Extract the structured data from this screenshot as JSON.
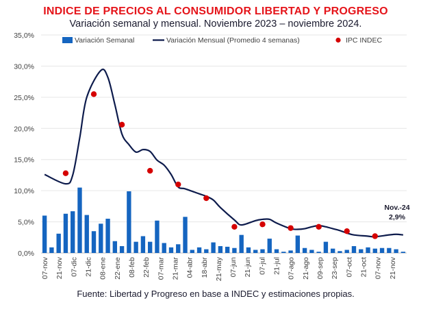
{
  "title": "INDICE DE PRECIOS AL CONSUMIDOR LIBERTAD Y PROGRESO",
  "subtitle": "Variación semanal y mensual. Noviembre 2023 – noviembre 2024.",
  "source": "Fuente: Libertad y Progreso en base a INDEC y estimaciones propias.",
  "colors": {
    "title": "#e5141a",
    "bar": "#1565c0",
    "line": "#0d1b4c",
    "dot": "#d50000",
    "grid": "#e6e6e6"
  },
  "chart_data": {
    "type": "bar",
    "title": "INDICE DE PRECIOS AL CONSUMIDOR LIBERTAD Y PROGRESO",
    "subtitle": "Variación semanal y mensual. Noviembre 2023 – noviembre 2024.",
    "ylim": [
      0,
      35
    ],
    "y_ticks": [
      "0,0%",
      "5,0%",
      "10,0%",
      "15,0%",
      "20,0%",
      "25,0%",
      "30,0%",
      "35,0%"
    ],
    "y_tick_values": [
      0,
      5,
      10,
      15,
      20,
      25,
      30,
      35
    ],
    "grid": true,
    "legend_position": "top",
    "x_tick_labels": [
      "07-nov",
      "21-nov",
      "07-dic",
      "21-dic",
      "08-ene",
      "22-ene",
      "08-feb",
      "22-feb",
      "07-mar",
      "21-mar",
      "04-abr",
      "18-abr",
      "21-may",
      "07-jun",
      "21-jun",
      "07-jul",
      "21-jul",
      "07-ago",
      "21-ago",
      "09-sep",
      "23-sep",
      "07-oct",
      "21-oct",
      "07-nov",
      "21-nov"
    ],
    "series": [
      {
        "name": "Variación Semanal",
        "kind": "bar",
        "values": [
          6.0,
          0.9,
          3.1,
          6.3,
          6.7,
          10.5,
          6.1,
          3.5,
          4.7,
          5.5,
          1.9,
          1.1,
          9.9,
          1.8,
          2.7,
          1.8,
          5.2,
          1.6,
          0.9,
          1.4,
          5.8,
          0.5,
          0.9,
          0.6,
          1.7,
          1.1,
          1.0,
          0.8,
          2.9,
          0.9,
          0.5,
          0.6,
          2.3,
          0.6,
          0.2,
          0.4,
          2.8,
          0.8,
          0.5,
          0.2,
          1.8,
          0.7,
          0.3,
          0.5,
          1.1,
          0.6,
          0.9,
          0.7,
          0.8,
          0.8,
          0.6,
          0.2
        ]
      },
      {
        "name": "Variación Mensual (Promedio 4 semanas)",
        "kind": "line",
        "x_index": [
          0,
          3,
          4,
          5,
          6,
          8,
          9,
          10,
          11,
          12,
          13,
          14,
          15,
          16,
          17,
          18,
          19,
          20,
          22,
          23,
          24,
          25,
          27,
          28,
          30,
          31,
          32,
          33,
          35,
          36,
          37,
          38,
          39,
          40,
          41,
          42,
          43,
          44,
          46,
          47,
          49,
          50,
          51
        ],
        "values": [
          12.6,
          11.1,
          12.5,
          18.5,
          25.0,
          29.3,
          28.2,
          23.8,
          19.1,
          17.4,
          16.2,
          16.6,
          16.3,
          14.9,
          14.1,
          12.6,
          10.6,
          10.3,
          9.5,
          9.1,
          8.5,
          7.3,
          5.3,
          4.5,
          5.2,
          5.4,
          5.4,
          4.8,
          3.9,
          3.8,
          3.9,
          4.2,
          4.4,
          4.2,
          3.9,
          3.6,
          3.2,
          2.9,
          2.7,
          2.6,
          2.9,
          3.0,
          2.9
        ]
      },
      {
        "name": "IPC INDEC",
        "kind": "scatter",
        "x_index": [
          3,
          7,
          11,
          15,
          19,
          23,
          27,
          31,
          35,
          39,
          43,
          47
        ],
        "values": [
          12.8,
          25.5,
          20.6,
          13.2,
          11.0,
          8.8,
          4.2,
          4.6,
          4.0,
          4.2,
          3.5,
          2.7
        ]
      }
    ],
    "annotations": [
      {
        "text": "Nov.-24",
        "value": "2,9%"
      }
    ]
  }
}
